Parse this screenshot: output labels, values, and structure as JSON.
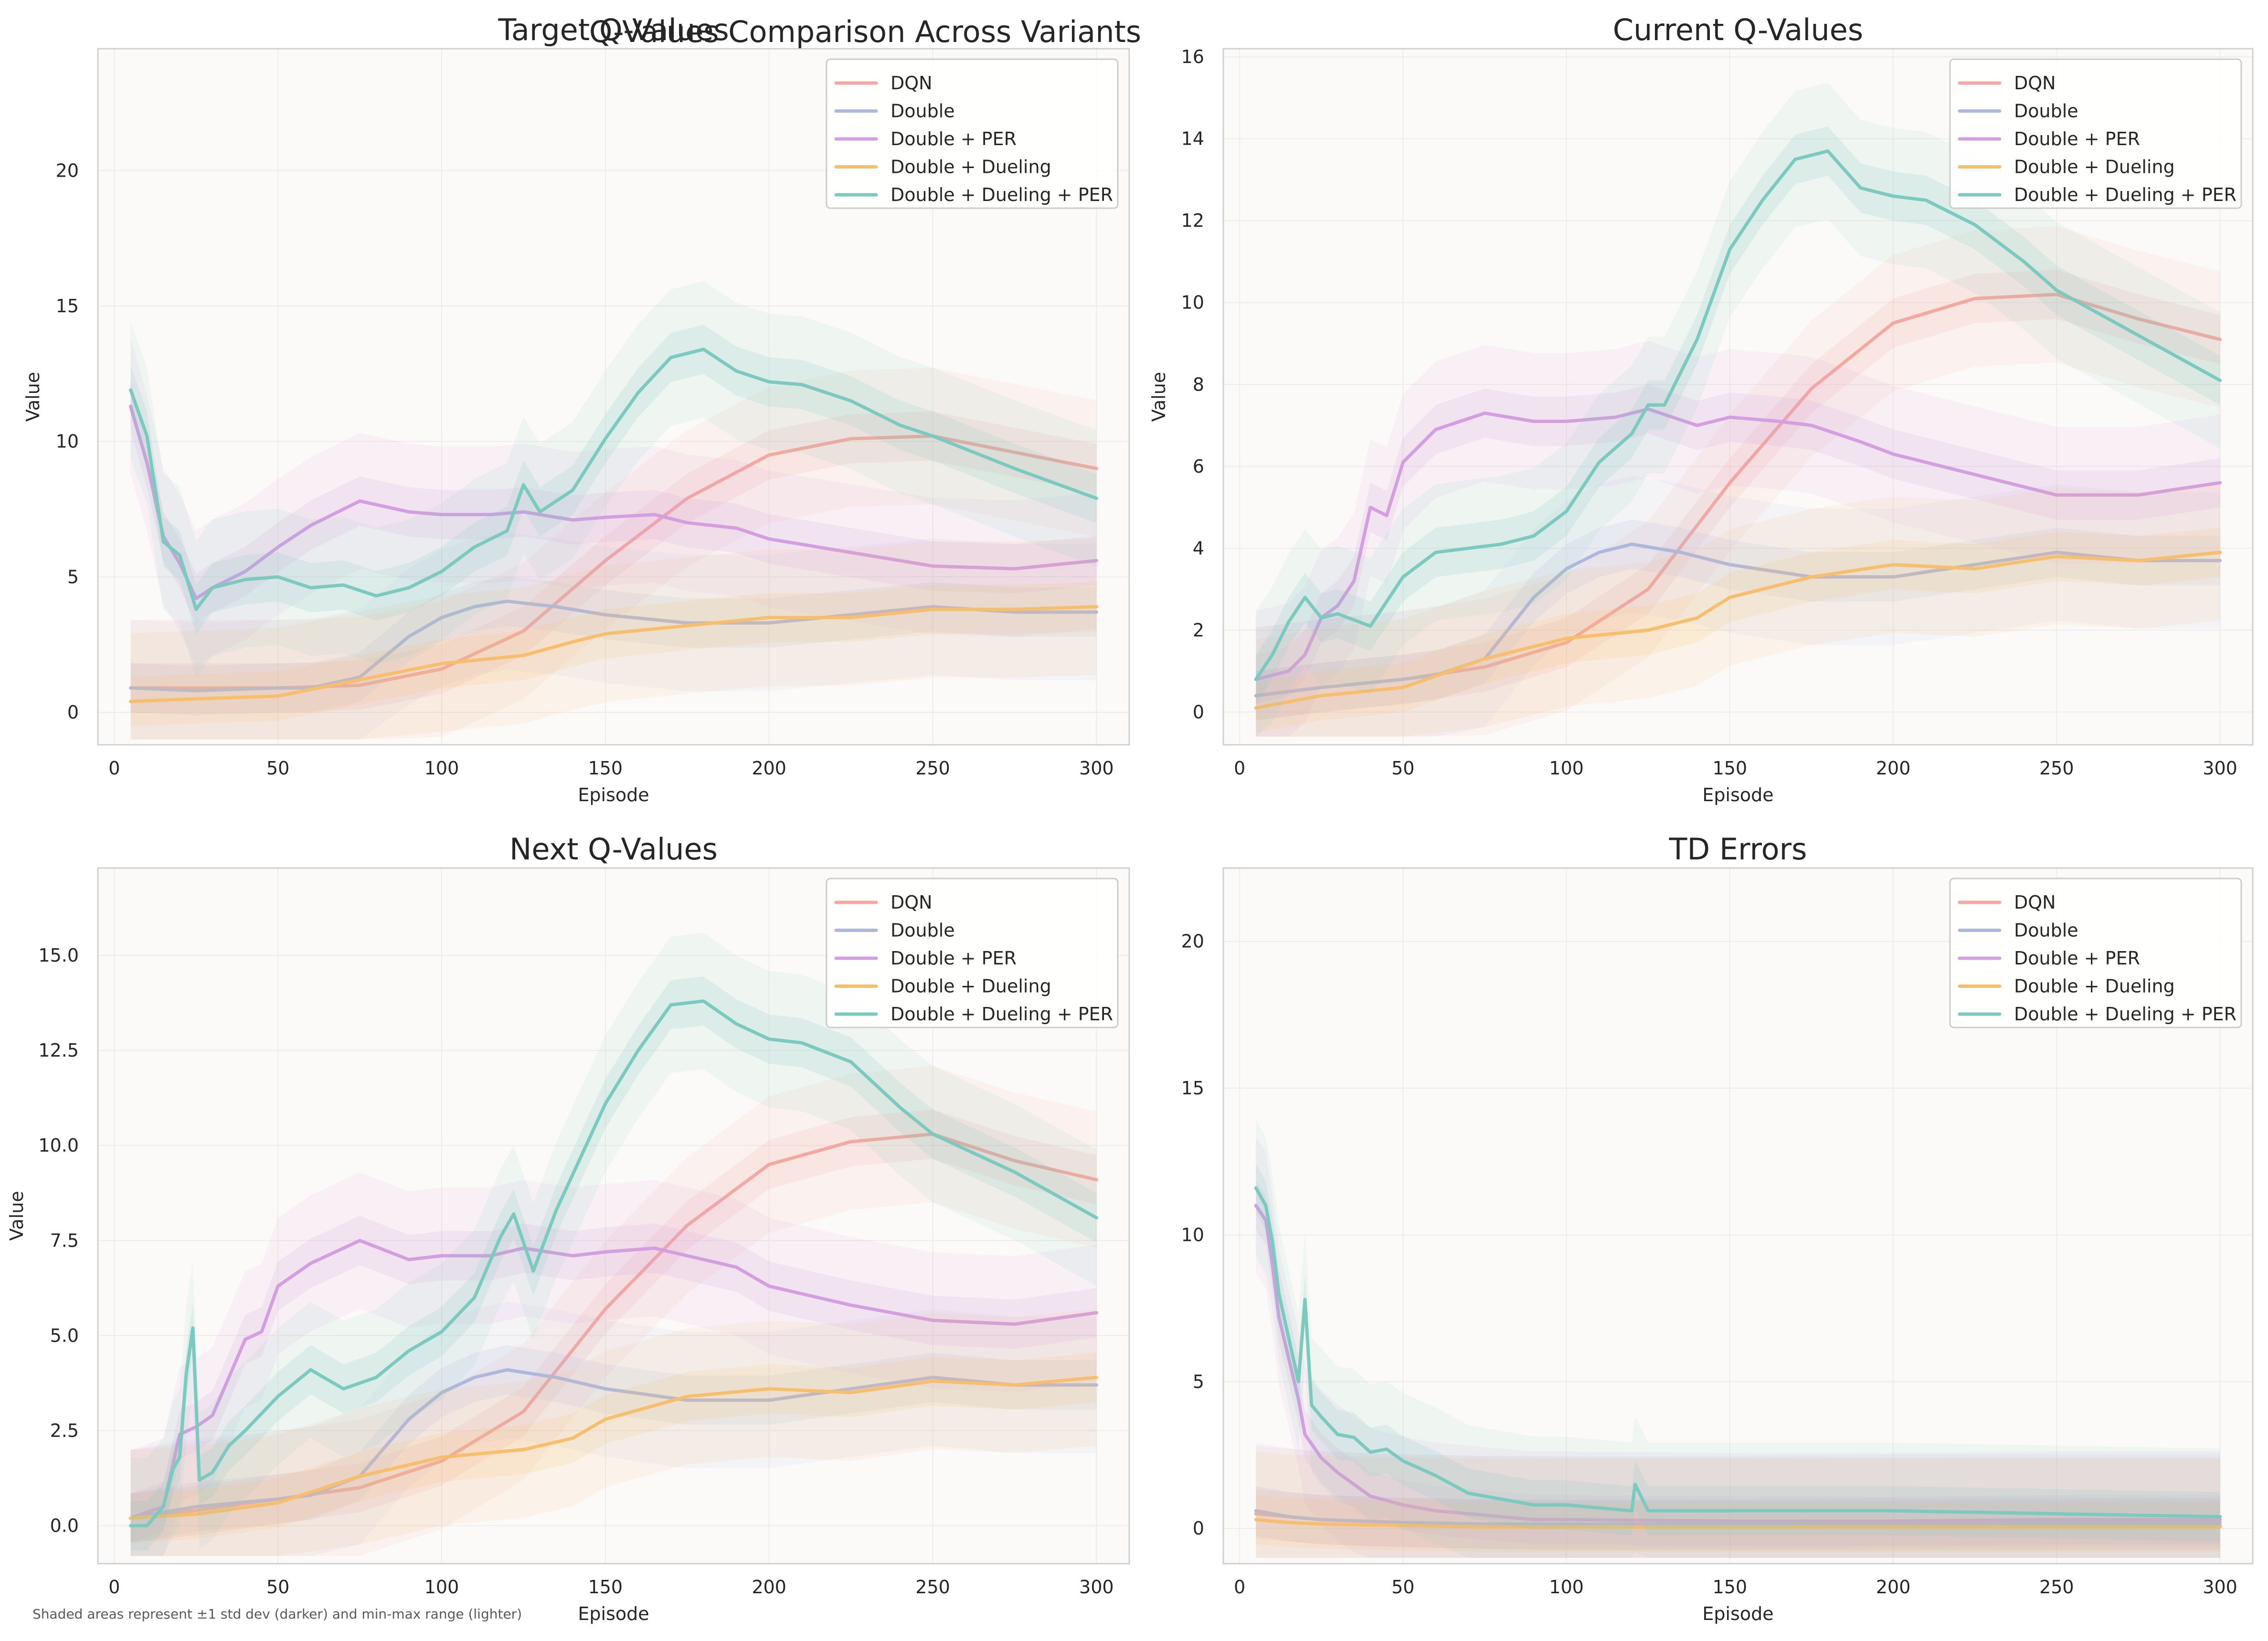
{
  "figure": {
    "title": "Q-Values Comparison Across Variants",
    "footnote": "Shaded areas represent ±1 std dev (darker) and min-max range (lighter)"
  },
  "legend_labels": [
    "DQN",
    "Double",
    "Double + PER",
    "Double + Dueling",
    "Double + Dueling + PER"
  ],
  "colors": {
    "DQN": "#F4A9A0",
    "Double": "#AEB8DE",
    "Double + PER": "#D49FE0",
    "Double + Dueling": "#F7BE6E",
    "Double + Dueling + PER": "#7CCABF",
    "plot_background": "#FCFAF8",
    "frame": "#D0D0D0",
    "grid": "#EFEBE7"
  },
  "chart_data": [
    {
      "type": "line",
      "title": "Target Q-Values",
      "xlabel": "Episode",
      "ylabel": "Value",
      "xlim": [
        -5,
        310
      ],
      "ylim": [
        -1.2,
        24.5
      ],
      "xticks": [
        0,
        50,
        100,
        150,
        200,
        250,
        300
      ],
      "yticks": [
        0,
        5,
        10,
        15,
        20
      ],
      "ytick_labels": [
        "0",
        "5",
        "10",
        "15",
        "20"
      ],
      "grid": true,
      "legend_position": "top-right",
      "bands": "±1 std dev and min-max range",
      "series": [
        {
          "name": "DQN",
          "x": [
            5,
            25,
            50,
            75,
            100,
            125,
            150,
            175,
            200,
            225,
            250,
            275,
            300
          ],
          "values": [
            0.9,
            0.9,
            0.9,
            1.0,
            1.6,
            3.0,
            5.6,
            7.9,
            9.5,
            10.1,
            10.2,
            9.6,
            9.0
          ]
        },
        {
          "name": "Double",
          "x": [
            5,
            25,
            50,
            60,
            75,
            90,
            100,
            110,
            120,
            135,
            150,
            175,
            200,
            225,
            250,
            275,
            300
          ],
          "values": [
            0.9,
            0.8,
            0.9,
            0.9,
            1.3,
            2.8,
            3.5,
            3.9,
            4.1,
            3.9,
            3.6,
            3.3,
            3.3,
            3.6,
            3.9,
            3.7,
            3.7
          ]
        },
        {
          "name": "Double + PER",
          "x": [
            5,
            10,
            15,
            20,
            25,
            30,
            40,
            50,
            60,
            75,
            90,
            100,
            115,
            125,
            140,
            150,
            165,
            175,
            190,
            200,
            225,
            250,
            275,
            300
          ],
          "values": [
            11.3,
            9.2,
            6.5,
            5.5,
            4.2,
            4.6,
            5.2,
            6.1,
            6.9,
            7.8,
            7.4,
            7.3,
            7.3,
            7.4,
            7.1,
            7.2,
            7.3,
            7.0,
            6.8,
            6.4,
            5.9,
            5.4,
            5.3,
            5.6
          ]
        },
        {
          "name": "Double + Dueling",
          "x": [
            5,
            25,
            50,
            75,
            100,
            125,
            140,
            150,
            175,
            200,
            225,
            250,
            275,
            300
          ],
          "values": [
            0.4,
            0.5,
            0.6,
            1.2,
            1.8,
            2.1,
            2.6,
            2.9,
            3.2,
            3.5,
            3.5,
            3.8,
            3.8,
            3.9
          ]
        },
        {
          "name": "Double + Dueling + PER",
          "x": [
            5,
            10,
            15,
            20,
            25,
            30,
            40,
            50,
            60,
            70,
            80,
            90,
            100,
            110,
            120,
            125,
            130,
            140,
            150,
            160,
            170,
            180,
            190,
            200,
            210,
            225,
            240,
            250,
            275,
            300
          ],
          "values": [
            11.9,
            10.2,
            6.3,
            5.8,
            3.8,
            4.6,
            4.9,
            5.0,
            4.6,
            4.7,
            4.3,
            4.6,
            5.2,
            6.1,
            6.7,
            8.4,
            7.4,
            8.2,
            10.1,
            11.8,
            13.1,
            13.4,
            12.6,
            12.2,
            12.1,
            11.5,
            10.6,
            10.2,
            9.0,
            7.9
          ]
        }
      ]
    },
    {
      "type": "line",
      "title": "Current Q-Values",
      "xlabel": "Episode",
      "ylabel": "Value",
      "xlim": [
        -5,
        310
      ],
      "ylim": [
        -0.8,
        16.2
      ],
      "xticks": [
        0,
        50,
        100,
        150,
        200,
        250,
        300
      ],
      "yticks": [
        0,
        2,
        4,
        6,
        8,
        10,
        12,
        14,
        16
      ],
      "ytick_labels": [
        "0",
        "2",
        "4",
        "6",
        "8",
        "10",
        "12",
        "14",
        "16"
      ],
      "grid": true,
      "legend_position": "top-right",
      "bands": "±1 std dev and min-max range",
      "series": [
        {
          "name": "DQN",
          "x": [
            5,
            25,
            50,
            75,
            100,
            125,
            150,
            175,
            200,
            225,
            250,
            275,
            300
          ],
          "values": [
            0.4,
            0.6,
            0.8,
            1.1,
            1.7,
            3.0,
            5.6,
            7.9,
            9.5,
            10.1,
            10.2,
            9.6,
            9.1
          ]
        },
        {
          "name": "Double",
          "x": [
            5,
            25,
            50,
            60,
            75,
            90,
            100,
            110,
            120,
            135,
            150,
            175,
            200,
            225,
            250,
            275,
            300
          ],
          "values": [
            0.4,
            0.6,
            0.8,
            0.9,
            1.3,
            2.8,
            3.5,
            3.9,
            4.1,
            3.9,
            3.6,
            3.3,
            3.3,
            3.6,
            3.9,
            3.7,
            3.7
          ]
        },
        {
          "name": "Double + PER",
          "x": [
            5,
            10,
            15,
            20,
            25,
            30,
            35,
            40,
            45,
            50,
            60,
            75,
            90,
            100,
            115,
            125,
            140,
            150,
            165,
            175,
            190,
            200,
            225,
            250,
            275,
            300
          ],
          "values": [
            0.8,
            0.9,
            1.0,
            1.4,
            2.3,
            2.6,
            3.2,
            5.0,
            4.8,
            6.1,
            6.9,
            7.3,
            7.1,
            7.1,
            7.2,
            7.4,
            7.0,
            7.2,
            7.1,
            7.0,
            6.6,
            6.3,
            5.8,
            5.3,
            5.3,
            5.6
          ]
        },
        {
          "name": "Double + Dueling",
          "x": [
            5,
            25,
            50,
            75,
            100,
            125,
            140,
            150,
            175,
            200,
            225,
            250,
            275,
            300
          ],
          "values": [
            0.1,
            0.4,
            0.6,
            1.3,
            1.8,
            2.0,
            2.3,
            2.8,
            3.3,
            3.6,
            3.5,
            3.8,
            3.7,
            3.9
          ]
        },
        {
          "name": "Double + Dueling + PER",
          "x": [
            5,
            10,
            15,
            20,
            25,
            30,
            40,
            50,
            60,
            70,
            80,
            90,
            100,
            110,
            120,
            125,
            130,
            140,
            150,
            160,
            170,
            180,
            190,
            200,
            210,
            225,
            240,
            250,
            275,
            300
          ],
          "values": [
            0.8,
            1.4,
            2.2,
            2.8,
            2.3,
            2.4,
            2.1,
            3.3,
            3.9,
            4.0,
            4.1,
            4.3,
            4.9,
            6.1,
            6.8,
            7.5,
            7.5,
            9.1,
            11.3,
            12.5,
            13.5,
            13.7,
            12.8,
            12.6,
            12.5,
            11.9,
            11.0,
            10.3,
            9.2,
            8.1
          ]
        }
      ]
    },
    {
      "type": "line",
      "title": "Next Q-Values",
      "xlabel": "Episode",
      "ylabel": "Value",
      "xlim": [
        -5,
        310
      ],
      "ylim": [
        -1.0,
        17.3
      ],
      "xticks": [
        0,
        50,
        100,
        150,
        200,
        250,
        300
      ],
      "yticks": [
        0.0,
        2.5,
        5.0,
        7.5,
        10.0,
        12.5,
        15.0
      ],
      "ytick_labels": [
        "0.0",
        "2.5",
        "5.0",
        "7.5",
        "10.0",
        "12.5",
        "15.0"
      ],
      "grid": true,
      "legend_position": "top-right",
      "bands": "±1 std dev and min-max range",
      "series": [
        {
          "name": "DQN",
          "x": [
            5,
            25,
            50,
            75,
            100,
            125,
            150,
            175,
            200,
            225,
            250,
            275,
            300
          ],
          "values": [
            0.2,
            0.4,
            0.7,
            1.0,
            1.7,
            3.0,
            5.7,
            7.9,
            9.5,
            10.1,
            10.3,
            9.6,
            9.1
          ]
        },
        {
          "name": "Double",
          "x": [
            5,
            25,
            50,
            60,
            75,
            90,
            100,
            110,
            120,
            135,
            150,
            175,
            200,
            225,
            250,
            275,
            300
          ],
          "values": [
            0.2,
            0.5,
            0.7,
            0.8,
            1.3,
            2.8,
            3.5,
            3.9,
            4.1,
            3.9,
            3.6,
            3.3,
            3.3,
            3.6,
            3.9,
            3.7,
            3.7
          ]
        },
        {
          "name": "Double + PER",
          "x": [
            5,
            15,
            20,
            25,
            30,
            35,
            40,
            45,
            50,
            60,
            75,
            90,
            100,
            115,
            125,
            140,
            150,
            165,
            175,
            190,
            200,
            225,
            250,
            275,
            300
          ],
          "values": [
            0.2,
            0.5,
            2.4,
            2.6,
            2.9,
            3.9,
            4.9,
            5.1,
            6.3,
            6.9,
            7.5,
            7.0,
            7.1,
            7.1,
            7.3,
            7.1,
            7.2,
            7.3,
            7.1,
            6.8,
            6.3,
            5.8,
            5.4,
            5.3,
            5.6
          ]
        },
        {
          "name": "Double + Dueling",
          "x": [
            5,
            25,
            50,
            75,
            100,
            125,
            140,
            150,
            175,
            200,
            225,
            250,
            275,
            300
          ],
          "values": [
            0.2,
            0.3,
            0.6,
            1.3,
            1.8,
            2.0,
            2.3,
            2.8,
            3.4,
            3.6,
            3.5,
            3.8,
            3.7,
            3.9
          ]
        },
        {
          "name": "Double + Dueling + PER",
          "x": [
            5,
            10,
            12,
            15,
            18,
            20,
            22,
            24,
            26,
            30,
            35,
            40,
            50,
            60,
            70,
            80,
            90,
            100,
            110,
            118,
            122,
            128,
            135,
            150,
            160,
            170,
            180,
            190,
            200,
            210,
            225,
            240,
            250,
            275,
            300
          ],
          "values": [
            0.0,
            0.0,
            0.2,
            0.5,
            1.5,
            1.8,
            4.0,
            5.2,
            1.2,
            1.4,
            2.1,
            2.5,
            3.4,
            4.1,
            3.6,
            3.9,
            4.6,
            5.1,
            6.0,
            7.6,
            8.2,
            6.7,
            8.3,
            11.1,
            12.5,
            13.7,
            13.8,
            13.2,
            12.8,
            12.7,
            12.2,
            11.0,
            10.3,
            9.3,
            8.1
          ]
        }
      ]
    },
    {
      "type": "line",
      "title": "TD Errors",
      "xlabel": "Episode",
      "ylabel": "",
      "xlim": [
        -5,
        310
      ],
      "ylim": [
        -1.2,
        22.5
      ],
      "xticks": [
        0,
        50,
        100,
        150,
        200,
        250,
        300
      ],
      "yticks": [
        0,
        5,
        10,
        15,
        20
      ],
      "ytick_labels": [
        "0",
        "5",
        "10",
        "15",
        "20"
      ],
      "grid": true,
      "legend_position": "top-right",
      "bands": "±1 std dev and min-max range",
      "series": [
        {
          "name": "DQN",
          "x": [
            5,
            15,
            25,
            50,
            75,
            100,
            150,
            200,
            250,
            300
          ],
          "values": [
            0.5,
            0.4,
            0.3,
            0.2,
            0.15,
            0.1,
            0.1,
            0.1,
            0.1,
            0.1
          ]
        },
        {
          "name": "Double",
          "x": [
            5,
            15,
            25,
            50,
            75,
            100,
            150,
            200,
            250,
            300
          ],
          "values": [
            0.6,
            0.4,
            0.3,
            0.2,
            0.15,
            0.15,
            0.15,
            0.2,
            0.2,
            0.2
          ]
        },
        {
          "name": "Double + PER",
          "x": [
            5,
            8,
            10,
            12,
            15,
            18,
            20,
            25,
            30,
            35,
            40,
            50,
            60,
            70,
            80,
            90,
            100,
            150,
            200,
            250,
            300
          ],
          "values": [
            11.0,
            10.5,
            9.0,
            7.2,
            5.8,
            4.4,
            3.2,
            2.4,
            1.9,
            1.5,
            1.1,
            0.8,
            0.6,
            0.5,
            0.4,
            0.3,
            0.3,
            0.25,
            0.25,
            0.3,
            0.3
          ]
        },
        {
          "name": "Double + Dueling",
          "x": [
            5,
            15,
            25,
            50,
            75,
            100,
            150,
            200,
            250,
            300
          ],
          "values": [
            0.3,
            0.2,
            0.15,
            0.1,
            0.05,
            0.05,
            0.05,
            0.05,
            0.05,
            0.05
          ]
        },
        {
          "name": "Double + Dueling + PER",
          "x": [
            5,
            8,
            10,
            12,
            15,
            18,
            20,
            22,
            25,
            30,
            35,
            40,
            45,
            50,
            60,
            70,
            80,
            90,
            100,
            110,
            120,
            121,
            125,
            150,
            175,
            200,
            225,
            250,
            275,
            300
          ],
          "values": [
            11.6,
            11.0,
            9.8,
            8.0,
            6.5,
            5.0,
            7.8,
            4.2,
            3.8,
            3.2,
            3.1,
            2.6,
            2.7,
            2.3,
            1.8,
            1.2,
            1.0,
            0.8,
            0.8,
            0.7,
            0.6,
            1.5,
            0.6,
            0.6,
            0.6,
            0.6,
            0.55,
            0.5,
            0.45,
            0.4
          ]
        }
      ]
    }
  ]
}
